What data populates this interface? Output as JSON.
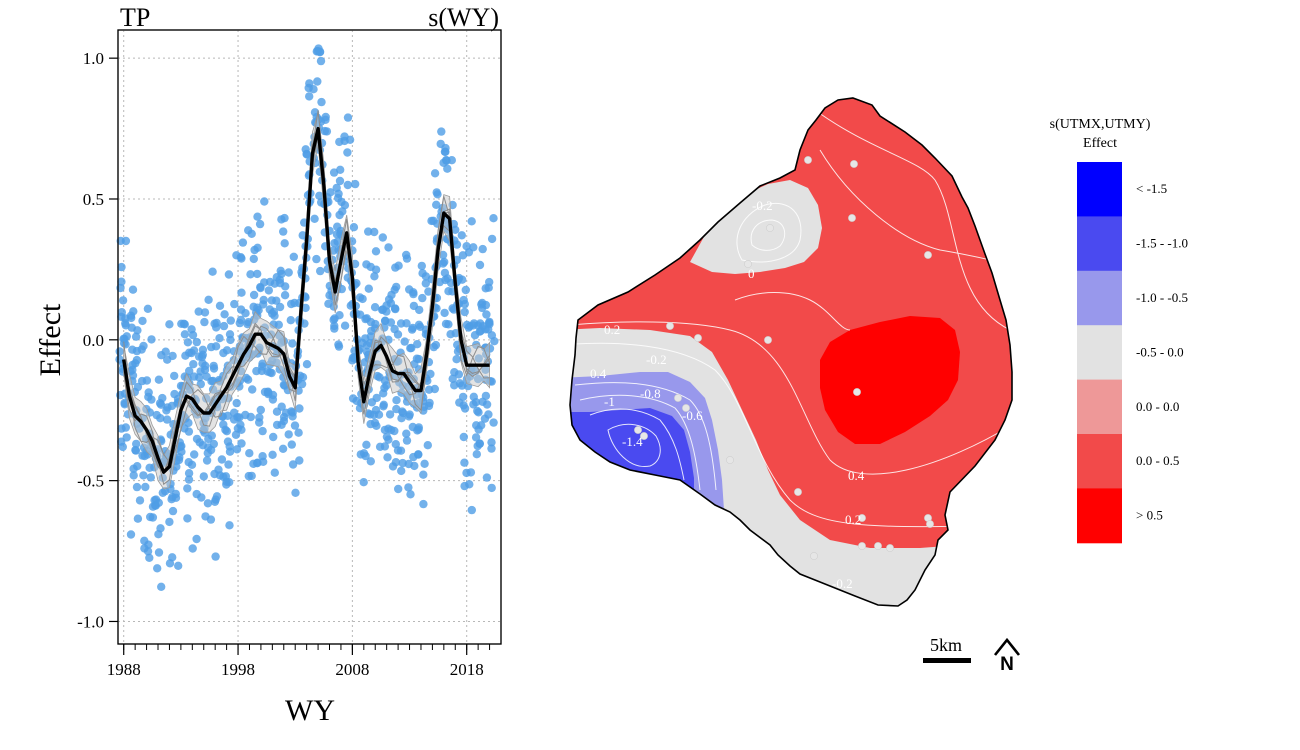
{
  "chart_data": [
    {
      "type": "scatter",
      "title_left": "TP",
      "title_right": "s(WY)",
      "xlabel": "WY",
      "ylabel": "Effect",
      "xlim": [
        1987.5,
        2021
      ],
      "ylim": [
        -1.08,
        1.1
      ],
      "xticks": [
        1988,
        1998,
        2008,
        2018
      ],
      "xtick_labels": [
        "1988",
        "1998",
        "2008",
        "2018"
      ],
      "yticks": [
        1.0,
        0.5,
        0.0,
        -0.5,
        -1.0
      ],
      "ytick_labels": [
        "1.0",
        "0.5",
        "0.0",
        "-0.5",
        "-1.0"
      ],
      "minor_xticks": [
        1988,
        1989,
        1990,
        1991,
        1992,
        1993,
        1994,
        1995,
        1996,
        1997,
        1998,
        1999,
        2000,
        2001,
        2002,
        2003,
        2004,
        2005,
        2006,
        2007,
        2008,
        2009,
        2010,
        2011,
        2012,
        2013,
        2014,
        2015,
        2016,
        2017,
        2018,
        2019,
        2020
      ],
      "grid": true,
      "smooth_series": {
        "name": "s(WY)",
        "x": [
          1988,
          1988.5,
          1989,
          1989.5,
          1990,
          1990.5,
          1991,
          1991.5,
          1992,
          1992.5,
          1993,
          1993.5,
          1994,
          1994.5,
          1995,
          1995.5,
          1996,
          1996.5,
          1997,
          1997.5,
          1998,
          1998.5,
          1999,
          1999.5,
          2000,
          2000.5,
          2001,
          2001.5,
          2002,
          2002.5,
          2003,
          2003.5,
          2004,
          2004.5,
          2005,
          2005.5,
          2006,
          2006.5,
          2007,
          2007.5,
          2008,
          2008.5,
          2009,
          2009.5,
          2010,
          2010.5,
          2011,
          2011.5,
          2012,
          2012.5,
          2013,
          2013.5,
          2014,
          2014.5,
          2015,
          2015.5,
          2016,
          2016.5,
          2017,
          2017.5,
          2018,
          2018.5,
          2019,
          2019.5,
          2020
        ],
        "y": [
          -0.07,
          -0.2,
          -0.27,
          -0.29,
          -0.32,
          -0.36,
          -0.42,
          -0.47,
          -0.45,
          -0.35,
          -0.25,
          -0.2,
          -0.21,
          -0.24,
          -0.26,
          -0.26,
          -0.23,
          -0.2,
          -0.17,
          -0.13,
          -0.09,
          -0.05,
          -0.02,
          0.02,
          0.02,
          -0.01,
          -0.02,
          -0.03,
          -0.05,
          -0.13,
          -0.17,
          0.1,
          0.35,
          0.66,
          0.75,
          0.55,
          0.28,
          0.17,
          0.28,
          0.38,
          0.22,
          -0.08,
          -0.22,
          -0.12,
          -0.04,
          -0.02,
          -0.06,
          -0.11,
          -0.12,
          -0.12,
          -0.15,
          -0.18,
          -0.18,
          -0.05,
          0.12,
          0.32,
          0.45,
          0.43,
          0.2,
          0.0,
          -0.09,
          -0.09,
          -0.09,
          -0.09,
          -0.09
        ]
      },
      "points_note": "Partial residual points (blue) scattered around the smooth, roughly 1988-2020, effect range about -1.0 to 1.0"
    },
    {
      "type": "heatmap",
      "title": "s(UTMX,UTMY)",
      "legend_title": "Effect",
      "legend": [
        {
          "label": "< -1.5",
          "color": "#0000ff"
        },
        {
          "label": "-1.5 - -1.0",
          "color": "#4a4af0"
        },
        {
          "label": "-1.0 - -0.5",
          "color": "#9898ec"
        },
        {
          "label": "-0.5 -  0.0",
          "color": "#e2e2e2"
        },
        {
          "label": "0.0 -  0.0",
          "color": "#ee9898"
        },
        {
          "label": "0.0 -  0.5",
          "color": "#f24a4a"
        },
        {
          "label": "> 0.5",
          "color": "#ff0000"
        }
      ],
      "contour_labels": [
        "-0.2",
        "0",
        "0.2",
        "-0.2",
        "0.4",
        "-0.8",
        "-1",
        "-0.6",
        "-1.4",
        "0.4",
        "0.2",
        "-0.2"
      ],
      "scale_bar_label": "5km",
      "north_arrow_label": "N"
    }
  ]
}
